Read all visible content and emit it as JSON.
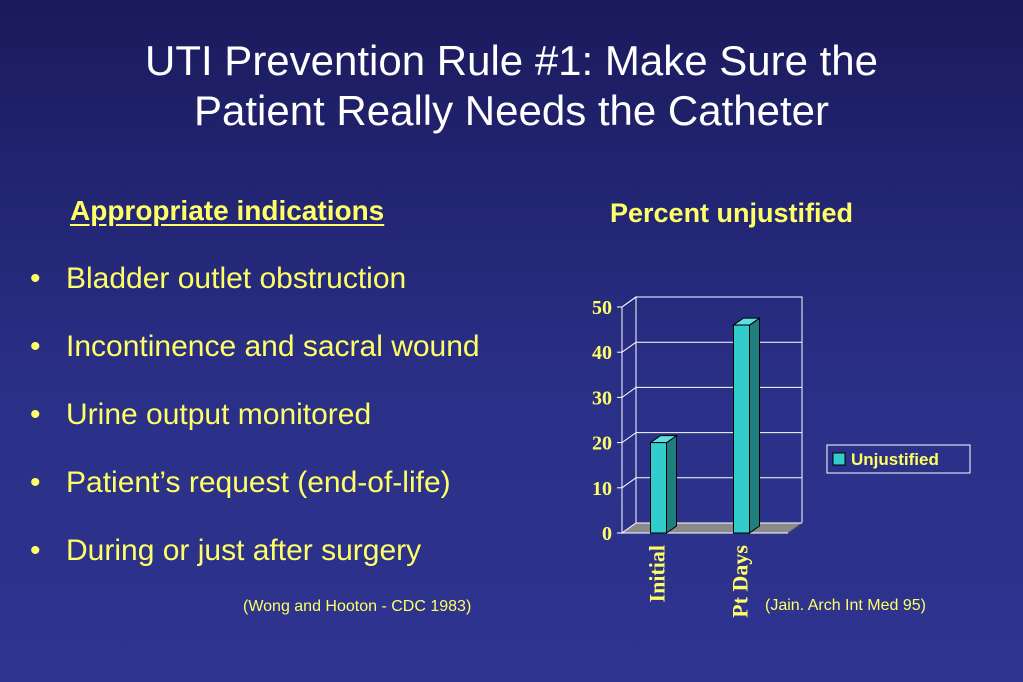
{
  "slide": {
    "title_line1": "UTI Prevention Rule #1:  Make Sure the",
    "title_line2": "Patient Really Needs the Catheter",
    "subheading": "Appropriate indications",
    "bullet_marker": "•",
    "bullets": [
      "Bladder outlet obstruction",
      "Incontinence and sacral wound",
      "Urine output monitored",
      "Patient’s request (end-of-life)",
      "During or just after surgery"
    ],
    "citation_left": "(Wong and Hooton - CDC 1983)",
    "citation_right": "(Jain. Arch Int Med 95)",
    "text_color": "#ffff66",
    "background_color": "#2a2f86"
  },
  "chart_data": {
    "type": "bar",
    "title": "Percent unjustified",
    "categories": [
      "Initial",
      "Pt Days"
    ],
    "series": [
      {
        "name": "Unjustified",
        "values": [
          20,
          46
        ],
        "color": "#33cccc"
      }
    ],
    "ylim": [
      0,
      50
    ],
    "yticks": [
      "0",
      "10",
      "20",
      "30",
      "40",
      "50"
    ],
    "grid": true,
    "legend_position": "right",
    "style": "3d"
  }
}
